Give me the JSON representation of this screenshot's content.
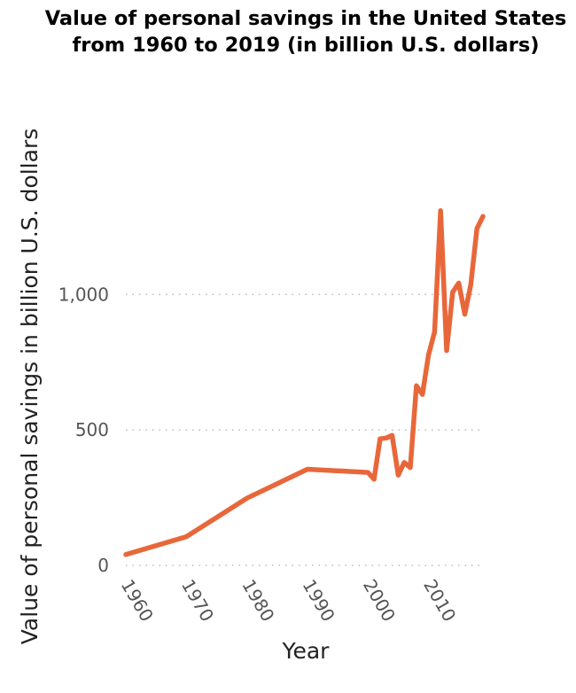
{
  "chart_data": {
    "type": "line",
    "title": "Value of personal savings in the United States from 1960 to 2019 (in billion U.S. dollars)",
    "xlabel": "Year",
    "ylabel": "Value of personal savings in billion U.S. dollars",
    "x_ticks": [
      "1960",
      "1970",
      "1980",
      "1990",
      "2000",
      "2010"
    ],
    "y_ticks": [
      "0",
      "500",
      "1,000"
    ],
    "xlim": [
      1960,
      2019
    ],
    "ylim": [
      0,
      1400
    ],
    "grid": "horizontal dotted",
    "series_color": "#e8673a",
    "x": [
      1960,
      1970,
      1980,
      1990,
      2000,
      2001,
      2002,
      2003,
      2004,
      2005,
      2006,
      2007,
      2008,
      2009,
      2010,
      2011,
      2012,
      2013,
      2014,
      2015,
      2016,
      2017,
      2018,
      2019
    ],
    "values": [
      40,
      106,
      248,
      355,
      343,
      318,
      467,
      470,
      480,
      333,
      380,
      361,
      663,
      631,
      776,
      862,
      1309,
      793,
      1008,
      1042,
      927,
      1037,
      1243,
      1288
    ]
  }
}
